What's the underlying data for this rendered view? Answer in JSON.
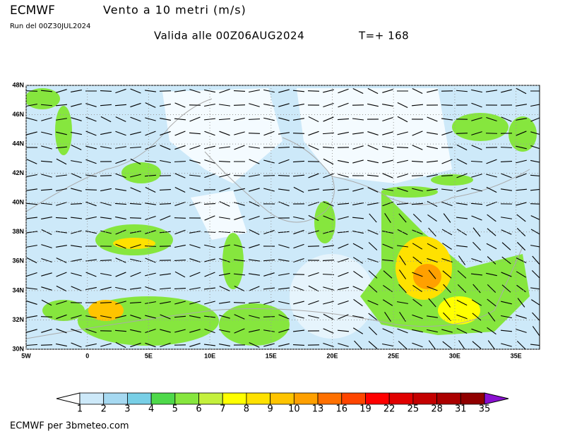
{
  "header": {
    "model": "ECMWF",
    "title": "Vento a 10 metri (m/s)",
    "run": "Run del 00Z30JUL2024",
    "valid": "Valida alle 00Z06AUG2024",
    "step": "T=+ 168"
  },
  "map": {
    "lat_labels": [
      "48N",
      "46N",
      "44N",
      "42N",
      "40N",
      "38N",
      "36N",
      "34N",
      "32N",
      "30N"
    ],
    "lon_labels": [
      "5W",
      "0",
      "5E",
      "10E",
      "15E",
      "20E",
      "25E",
      "30E",
      "35E"
    ]
  },
  "colorbar": {
    "labels": [
      1,
      2,
      3,
      4,
      5,
      6,
      7,
      8,
      9,
      10,
      13,
      16,
      19,
      22,
      25,
      28,
      31,
      35
    ],
    "colors": [
      "#ffffff",
      "#cde9f9",
      "#a6d9f1",
      "#78cfe6",
      "#4ed94a",
      "#86e63e",
      "#c4f03c",
      "#ffff00",
      "#ffe100",
      "#ffc400",
      "#ffa000",
      "#ff7000",
      "#ff4500",
      "#ff0000",
      "#e00000",
      "#c40000",
      "#ab0000",
      "#900000",
      "#8a10d0"
    ]
  },
  "footer": "ECMWF per 3bmeteo.com"
}
